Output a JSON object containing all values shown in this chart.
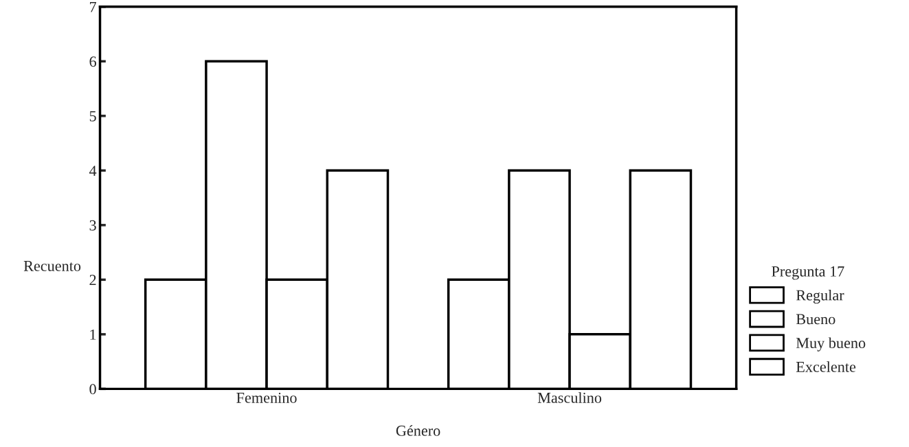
{
  "chart_data": {
    "type": "bar",
    "xlabel": "Género",
    "ylabel": "Recuento",
    "legend_title": "Pregunta 17",
    "categories": [
      "Femenino",
      "Masculino"
    ],
    "series": [
      {
        "name": "Regular",
        "color": "#ffffff",
        "values": [
          2,
          2
        ]
      },
      {
        "name": "Bueno",
        "color": "#ffffff",
        "values": [
          6,
          4
        ]
      },
      {
        "name": "Muy bueno",
        "color": "#ffffff",
        "values": [
          2,
          1
        ]
      },
      {
        "name": "Excelente",
        "color": "#ffffff",
        "values": [
          4,
          4
        ]
      }
    ],
    "ylim": [
      0,
      7
    ],
    "yticks": [
      0,
      1,
      2,
      3,
      4,
      5,
      6,
      7
    ],
    "grid": false,
    "legend": "right"
  }
}
